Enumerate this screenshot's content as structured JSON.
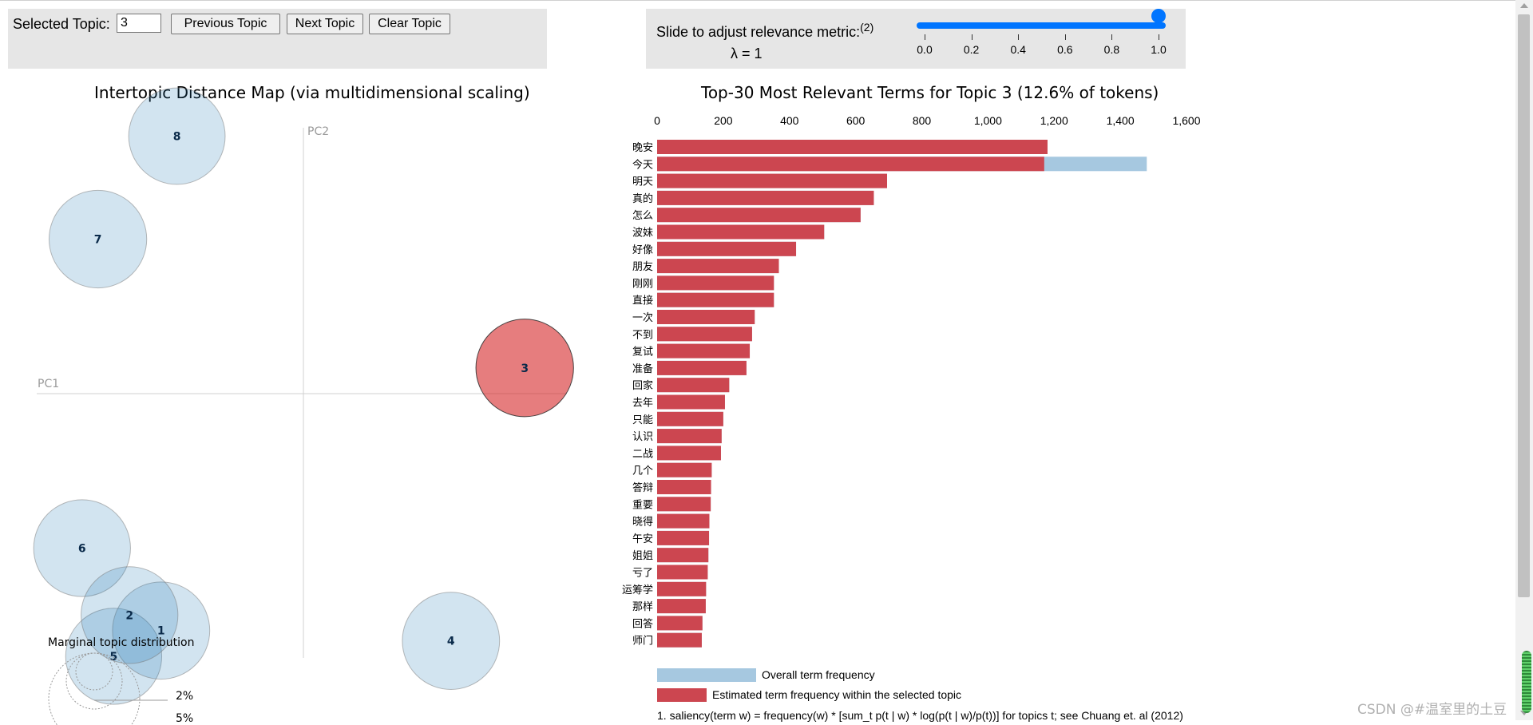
{
  "controls": {
    "selected_topic_label": "Selected Topic:",
    "selected_topic_value": "3",
    "prev_label": "Previous Topic",
    "next_label": "Next Topic",
    "clear_label": "Clear Topic",
    "slider_label": "Slide to adjust relevance metric:",
    "slider_footnote_mark": "(2)",
    "lambda_label": "λ = 1",
    "slider_value": 1.0,
    "slider_ticks": [
      "0.0",
      "0.2",
      "0.4",
      "0.6",
      "0.8",
      "1.0"
    ]
  },
  "map": {
    "title": "Intertopic Distance Map (via multidimensional scaling)",
    "pc1": "PC1",
    "pc2": "PC2",
    "legend_title": "Marginal topic distribution",
    "legend_2": "2%",
    "legend_5": "5%"
  },
  "bars": {
    "title": "Top-30 Most Relevant Terms for Topic 3 (12.6% of tokens)",
    "legend_overall": "Overall term frequency",
    "legend_estimated": "Estimated term frequency within the selected topic",
    "footnote": "1. saliency(term w) = frequency(w) * [sum_t p(t | w) * log(p(t | w)/p(t))] for topics t; see Chuang et. al (2012)"
  },
  "chart_data": [
    {
      "type": "scatter",
      "title": "Intertopic Distance Map (via multidimensional scaling)",
      "xlabel": "PC1",
      "ylabel": "PC2",
      "selected_topic": 3,
      "points": [
        {
          "topic": "1",
          "pc1": -0.27,
          "pc2": -0.46,
          "marginal_pct": 12.5
        },
        {
          "topic": "2",
          "pc1": -0.33,
          "pc2": -0.43,
          "marginal_pct": 12.4
        },
        {
          "topic": "3",
          "pc1": 0.42,
          "pc2": 0.05,
          "marginal_pct": 12.6
        },
        {
          "topic": "4",
          "pc1": 0.28,
          "pc2": -0.48,
          "marginal_pct": 12.5
        },
        {
          "topic": "5",
          "pc1": -0.36,
          "pc2": -0.51,
          "marginal_pct": 12.2
        },
        {
          "topic": "6",
          "pc1": -0.42,
          "pc2": -0.3,
          "marginal_pct": 12.4
        },
        {
          "topic": "7",
          "pc1": -0.39,
          "pc2": 0.3,
          "marginal_pct": 12.6
        },
        {
          "topic": "8",
          "pc1": -0.24,
          "pc2": 0.5,
          "marginal_pct": 12.3
        }
      ],
      "xlim": [
        -0.5,
        0.5
      ],
      "ylim": [
        -0.6,
        0.6
      ]
    },
    {
      "type": "bar",
      "orientation": "horizontal",
      "title": "Top-30 Most Relevant Terms for Topic 3 (12.6% of tokens)",
      "xlim": [
        0,
        1600
      ],
      "xticks": [
        "0",
        "200",
        "400",
        "600",
        "800",
        "1,000",
        "1,200",
        "1,400",
        "1,600"
      ],
      "categories": [
        "晚安",
        "今天",
        "明天",
        "真的",
        "怎么",
        "波妹",
        "好像",
        "朋友",
        "刚刚",
        "直接",
        "一次",
        "不到",
        "复试",
        "准备",
        "回家",
        "去年",
        "只能",
        "认识",
        "二战",
        "几个",
        "答辩",
        "重要",
        "晓得",
        "午安",
        "姐姐",
        "亏了",
        "运筹学",
        "那样",
        "回答",
        "师门"
      ],
      "series": [
        {
          "name": "Overall term frequency",
          "color": "#a6c8e0",
          "values": [
            1180,
            1480,
            695,
            655,
            615,
            505,
            420,
            368,
            353,
            353,
            295,
            287,
            280,
            270,
            218,
            205,
            200,
            195,
            193,
            165,
            163,
            162,
            158,
            157,
            155,
            153,
            148,
            147,
            137,
            135
          ]
        },
        {
          "name": "Estimated term frequency within the selected topic",
          "color": "#cc4650",
          "values": [
            1180,
            1170,
            695,
            655,
            615,
            505,
            420,
            368,
            353,
            353,
            295,
            287,
            280,
            270,
            218,
            205,
            200,
            195,
            193,
            165,
            163,
            162,
            158,
            157,
            155,
            153,
            148,
            147,
            137,
            135
          ]
        }
      ]
    }
  ],
  "watermark": "CSDN @#温室里的土豆"
}
